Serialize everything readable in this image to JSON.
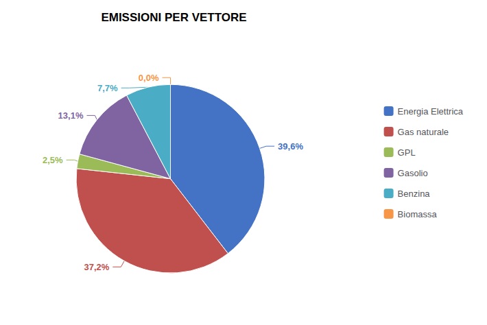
{
  "chart_data": {
    "type": "pie",
    "title": "EMISSIONI PER VETTORE",
    "categories": [
      "Energia Elettrica",
      "Gas naturale",
      "GPL",
      "Gasolio",
      "Benzina",
      "Biomassa"
    ],
    "values": [
      39.6,
      37.2,
      2.5,
      13.1,
      7.7,
      0.0
    ],
    "value_labels": [
      "39,6%",
      "37,2%",
      "2,5%",
      "13,1%",
      "7,7%",
      "0,0%"
    ],
    "colors": [
      "#4472C4",
      "#C0504D",
      "#9BBB59",
      "#8064A2",
      "#4BACC6",
      "#F79646"
    ],
    "data_labels": true,
    "legend": "right"
  }
}
